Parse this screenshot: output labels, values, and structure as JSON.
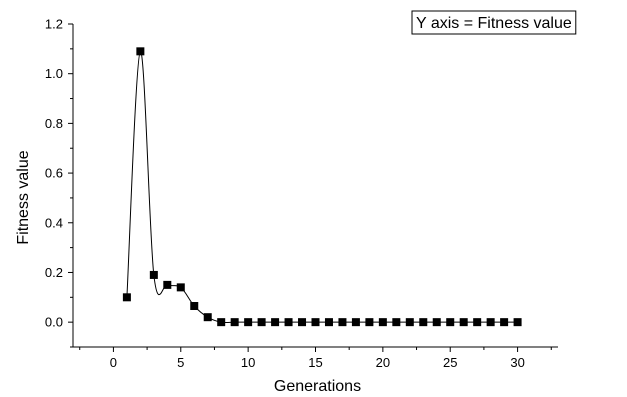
{
  "chart_data": {
    "type": "line",
    "title": "",
    "xlabel": "Generations",
    "ylabel": "Fitness value",
    "legend_text": "Y axis = Fitness value",
    "legend_placement": "top-right",
    "xlim": [
      -3,
      33
    ],
    "ylim": [
      -0.1,
      1.2
    ],
    "x_ticks": [
      0,
      5,
      10,
      15,
      20,
      25,
      30
    ],
    "x_tick_labels": [
      "0",
      "5",
      "10",
      "15",
      "20",
      "25",
      "30"
    ],
    "y_ticks": [
      0.0,
      0.2,
      0.4,
      0.6,
      0.8,
      1.0,
      1.2
    ],
    "y_tick_labels": [
      "0.0",
      "0.2",
      "0.4",
      "0.6",
      "0.8",
      "1.0",
      "1.2"
    ],
    "grid": false,
    "marker": "square",
    "line_style": "smooth",
    "colors": {
      "line": "#000000",
      "marker": "#000000"
    },
    "series": [
      {
        "x": [
          1,
          2,
          3,
          4,
          5,
          6,
          7,
          8,
          9,
          10,
          11,
          12,
          13,
          14,
          15,
          16,
          17,
          18,
          19,
          20,
          21,
          22,
          23,
          24,
          25,
          26,
          27,
          28,
          29,
          30
        ],
        "values": [
          0.1,
          1.09,
          0.19,
          0.15,
          0.14,
          0.065,
          0.02,
          0.0,
          0.0,
          0.0,
          0.0,
          0.0,
          0.0,
          0.0,
          0.0,
          0.0,
          0.0,
          0.0,
          0.0,
          0.0,
          0.0,
          0.0,
          0.0,
          0.0,
          0.0,
          0.0,
          0.0,
          0.0,
          0.0,
          0.0
        ]
      }
    ]
  }
}
